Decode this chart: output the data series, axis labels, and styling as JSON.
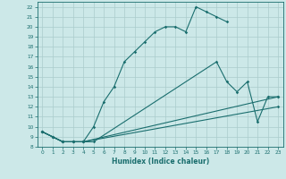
{
  "title": "",
  "xlabel": "Humidex (Indice chaleur)",
  "bg_color": "#cce8e8",
  "grid_color": "#aacccc",
  "line_color": "#1a6e6e",
  "xlim": [
    -0.5,
    23.5
  ],
  "ylim": [
    8,
    22.5
  ],
  "xticks": [
    0,
    1,
    2,
    3,
    4,
    5,
    6,
    7,
    8,
    9,
    10,
    11,
    12,
    13,
    14,
    15,
    16,
    17,
    18,
    19,
    20,
    21,
    22,
    23
  ],
  "yticks": [
    8,
    9,
    10,
    11,
    12,
    13,
    14,
    15,
    16,
    17,
    18,
    19,
    20,
    21,
    22
  ],
  "line1_x": [
    0,
    1,
    2,
    3,
    4,
    5,
    6,
    7,
    8,
    9,
    10,
    11,
    12,
    13,
    14,
    15,
    16,
    17,
    18
  ],
  "line1_y": [
    9.5,
    9,
    8.5,
    8.5,
    8.5,
    10,
    12.5,
    14,
    16.5,
    17.5,
    18.5,
    19.5,
    20,
    20,
    19.5,
    22,
    21.5,
    21,
    20.5
  ],
  "line2_x": [
    0,
    2,
    3,
    4,
    5,
    17,
    18,
    19,
    20,
    21,
    22,
    23
  ],
  "line2_y": [
    9.5,
    8.5,
    8.5,
    8.5,
    8.5,
    16.5,
    14.5,
    13.5,
    14.5,
    10.5,
    13,
    13
  ],
  "line3_x": [
    0,
    1,
    2,
    3,
    4,
    23
  ],
  "line3_y": [
    9.5,
    9,
    8.5,
    8.5,
    8.5,
    13
  ],
  "line4_x": [
    0,
    1,
    2,
    3,
    4,
    23
  ],
  "line4_y": [
    9.5,
    9,
    8.5,
    8.5,
    8.5,
    12
  ]
}
